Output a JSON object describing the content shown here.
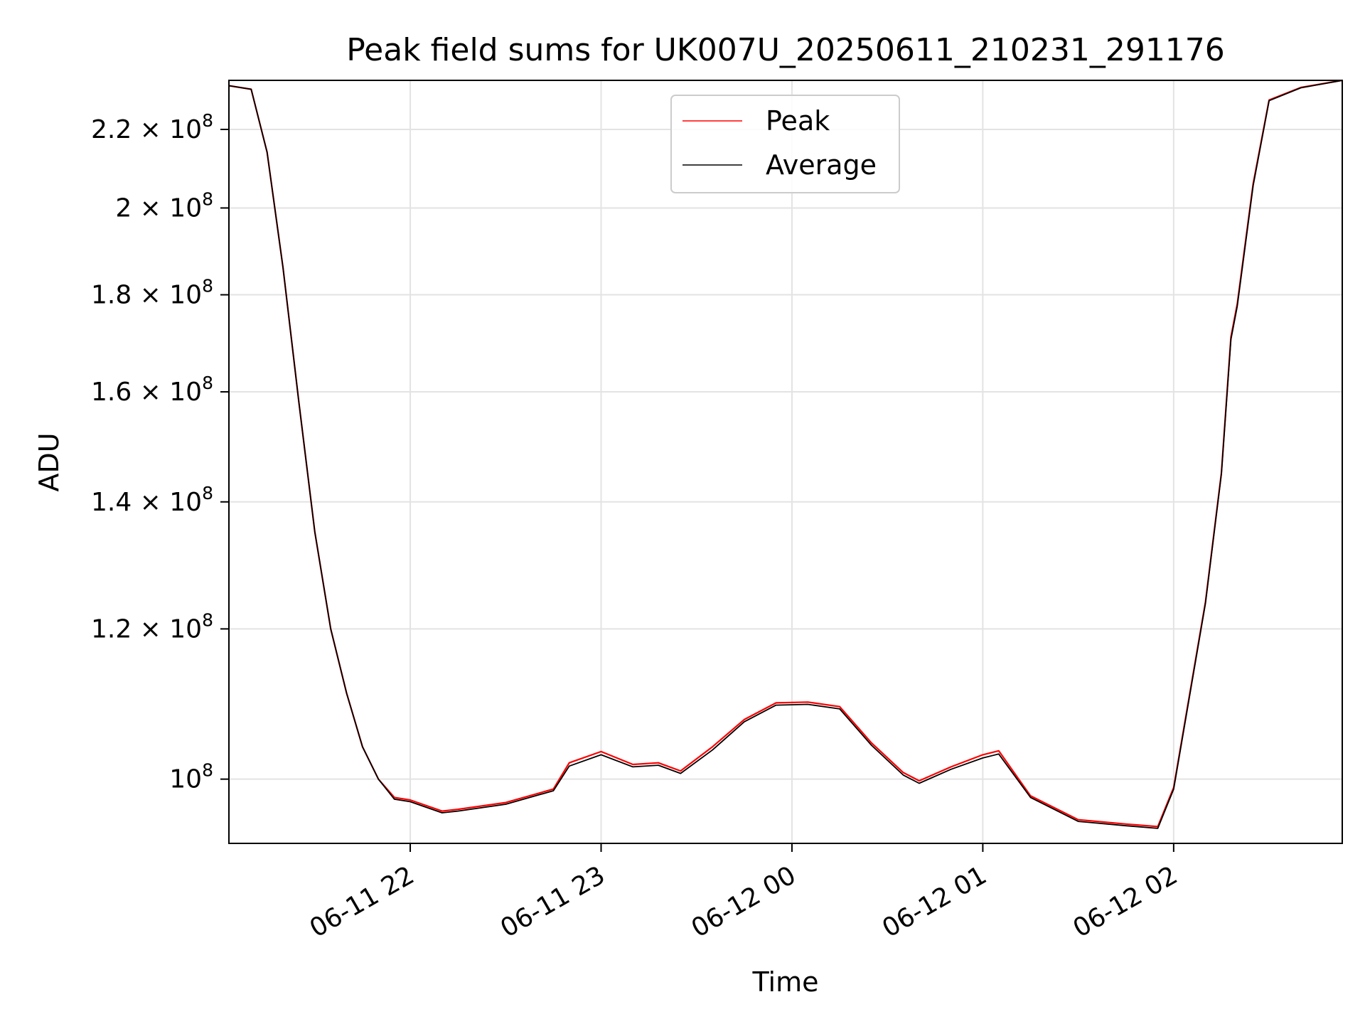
{
  "chart_data": {
    "type": "line",
    "title": "Peak field sums for UK007U_20250611_210231_291176",
    "xlabel": "Time",
    "ylabel": "ADU",
    "y_scale": "log",
    "grid": true,
    "legend_position": "upper center",
    "xlim": [
      "2025-06-11 21:03",
      "2025-06-12 02:53"
    ],
    "ylim": [
      92500000,
      233500000
    ],
    "x_ticks": [
      {
        "value": "2025-06-11 22:00",
        "label": "06-11 22"
      },
      {
        "value": "2025-06-11 23:00",
        "label": "06-11 23"
      },
      {
        "value": "2025-06-12 00:00",
        "label": "06-12 00"
      },
      {
        "value": "2025-06-12 01:00",
        "label": "06-12 01"
      },
      {
        "value": "2025-06-12 02:00",
        "label": "06-12 02"
      }
    ],
    "y_ticks": [
      {
        "value": 100000000,
        "label": "10^8"
      },
      {
        "value": 120000000,
        "label": "1.2×10^8"
      },
      {
        "value": 140000000,
        "label": "1.4×10^8"
      },
      {
        "value": 160000000,
        "label": "1.6×10^8"
      },
      {
        "value": 180000000,
        "label": "1.8×10^8"
      },
      {
        "value": 200000000,
        "label": "2×10^8"
      },
      {
        "value": 220000000,
        "label": "2.2×10^8"
      }
    ],
    "series": [
      {
        "name": "Peak",
        "color": "#ff0000",
        "x": [
          "2025-06-11 21:03",
          "2025-06-11 21:10",
          "2025-06-11 21:15",
          "2025-06-11 21:20",
          "2025-06-11 21:25",
          "2025-06-11 21:30",
          "2025-06-11 21:35",
          "2025-06-11 21:40",
          "2025-06-11 21:45",
          "2025-06-11 21:50",
          "2025-06-11 21:55",
          "2025-06-11 22:00",
          "2025-06-11 22:10",
          "2025-06-11 22:15",
          "2025-06-11 22:30",
          "2025-06-11 22:45",
          "2025-06-11 22:50",
          "2025-06-11 23:00",
          "2025-06-11 23:10",
          "2025-06-11 23:18",
          "2025-06-11 23:25",
          "2025-06-11 23:35",
          "2025-06-11 23:45",
          "2025-06-11 23:55",
          "2025-06-12 00:05",
          "2025-06-12 00:15",
          "2025-06-12 00:25",
          "2025-06-12 00:35",
          "2025-06-12 00:40",
          "2025-06-12 00:50",
          "2025-06-12 01:00",
          "2025-06-12 01:05",
          "2025-06-12 01:15",
          "2025-06-12 01:30",
          "2025-06-12 01:45",
          "2025-06-12 01:55",
          "2025-06-12 02:00",
          "2025-06-12 02:10",
          "2025-06-12 02:15",
          "2025-06-12 02:18",
          "2025-06-12 02:20",
          "2025-06-12 02:25",
          "2025-06-12 02:30",
          "2025-06-12 02:40",
          "2025-06-12 02:53"
        ],
        "values": [
          232000000,
          231000000,
          214000000,
          186000000,
          158000000,
          135000000,
          120000000,
          111000000,
          104000000,
          100000000,
          97800000,
          97500000,
          96200000,
          96400000,
          97200000,
          98800000,
          102000000,
          103400000,
          101800000,
          102000000,
          101000000,
          104000000,
          107500000,
          109700000,
          109800000,
          109200000,
          104500000,
          100800000,
          99800000,
          101500000,
          103000000,
          103500000,
          98000000,
          95200000,
          94700000,
          94400000,
          99000000,
          124000000,
          145000000,
          171000000,
          178000000,
          206000000,
          228000000,
          231500000,
          233500000
        ]
      },
      {
        "name": "Average",
        "color": "#000000",
        "x": [
          "2025-06-11 21:03",
          "2025-06-11 21:10",
          "2025-06-11 21:15",
          "2025-06-11 21:20",
          "2025-06-11 21:25",
          "2025-06-11 21:30",
          "2025-06-11 21:35",
          "2025-06-11 21:40",
          "2025-06-11 21:45",
          "2025-06-11 21:50",
          "2025-06-11 21:55",
          "2025-06-11 22:00",
          "2025-06-11 22:10",
          "2025-06-11 22:15",
          "2025-06-11 22:30",
          "2025-06-11 22:45",
          "2025-06-11 22:50",
          "2025-06-11 23:00",
          "2025-06-11 23:10",
          "2025-06-11 23:18",
          "2025-06-11 23:25",
          "2025-06-11 23:35",
          "2025-06-11 23:45",
          "2025-06-11 23:55",
          "2025-06-12 00:05",
          "2025-06-12 00:15",
          "2025-06-12 00:25",
          "2025-06-12 00:35",
          "2025-06-12 00:40",
          "2025-06-12 00:50",
          "2025-06-12 01:00",
          "2025-06-12 01:05",
          "2025-06-12 01:15",
          "2025-06-12 01:30",
          "2025-06-12 01:45",
          "2025-06-12 01:55",
          "2025-06-12 02:00",
          "2025-06-12 02:10",
          "2025-06-12 02:15",
          "2025-06-12 02:18",
          "2025-06-12 02:20",
          "2025-06-12 02:25",
          "2025-06-12 02:30",
          "2025-06-12 02:40",
          "2025-06-12 02:53"
        ],
        "values": [
          232000000,
          231000000,
          214000000,
          186000000,
          158000000,
          135000000,
          120000000,
          111000000,
          104000000,
          100000000,
          97600000,
          97300000,
          96000000,
          96200000,
          97000000,
          98600000,
          101600000,
          103000000,
          101500000,
          101700000,
          100700000,
          103600000,
          107200000,
          109400000,
          109500000,
          108900000,
          104200000,
          100500000,
          99500000,
          101200000,
          102600000,
          103100000,
          97800000,
          95000000,
          94500000,
          94200000,
          98800000,
          123800000,
          144800000,
          170500000,
          177500000,
          205500000,
          227800000,
          231400000,
          233500000
        ]
      }
    ]
  }
}
